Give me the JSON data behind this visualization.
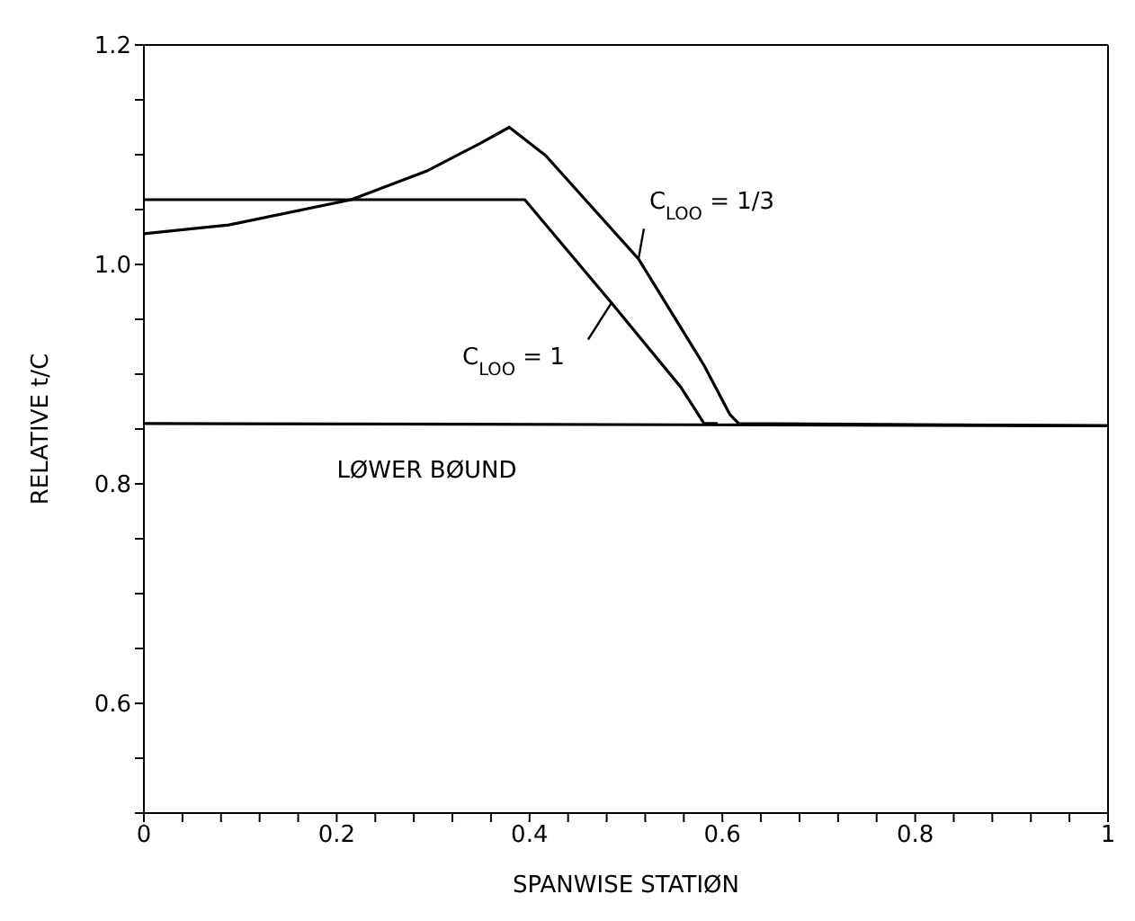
{
  "chart_data": {
    "type": "line",
    "xlabel": "SPANWISE STATIØN",
    "ylabel": "RELATIVE t/C",
    "xlim": [
      0,
      1
    ],
    "ylim": [
      0.5,
      1.2
    ],
    "xticks": [
      {
        "value": 0,
        "label": "0"
      },
      {
        "value": 0.04,
        "label": null
      },
      {
        "value": 0.08,
        "label": null
      },
      {
        "value": 0.12,
        "label": null
      },
      {
        "value": 0.16,
        "label": null
      },
      0.2,
      {
        "value": 0.24,
        "label": null
      },
      {
        "value": 0.28,
        "label": null
      },
      {
        "value": 0.32,
        "label": null
      },
      {
        "value": 0.36,
        "label": null
      },
      0.4,
      {
        "value": 0.44,
        "label": null
      },
      {
        "value": 0.48,
        "label": null
      },
      {
        "value": 0.52,
        "label": null
      },
      {
        "value": 0.56,
        "label": null
      },
      0.6,
      {
        "value": 0.64,
        "label": null
      },
      {
        "value": 0.68,
        "label": null
      },
      {
        "value": 0.72,
        "label": null
      },
      {
        "value": 0.76,
        "label": null
      },
      0.8,
      {
        "value": 0.84,
        "label": null
      },
      {
        "value": 0.88,
        "label": null
      },
      {
        "value": 0.92,
        "label": null
      },
      {
        "value": 0.96,
        "label": null
      },
      1
    ],
    "yticks": [
      {
        "value": 0.5,
        "label": null
      },
      {
        "value": 0.55,
        "label": null
      },
      0.6,
      {
        "value": 0.65,
        "label": null
      },
      {
        "value": 0.7,
        "label": null
      },
      {
        "value": 0.75,
        "label": null
      },
      0.8,
      {
        "value": 0.85,
        "label": null
      },
      {
        "value": 0.9,
        "label": null
      },
      {
        "value": 0.95,
        "label": null
      },
      {
        "value": 1.0,
        "label": "1.0"
      },
      {
        "value": 1.05,
        "label": null
      },
      {
        "value": 1.1,
        "label": null
      },
      {
        "value": 1.15,
        "label": null
      },
      1.2
    ],
    "marker": "none",
    "line_style": "solid",
    "series": [
      {
        "color": "#000000",
        "x": [
          0,
          0.088,
          0.215,
          0.293,
          0.348,
          0.379,
          0.417,
          0.513,
          0.581,
          0.608,
          0.617,
          1
        ],
        "values": [
          1.028,
          1.036,
          1.059,
          1.085,
          1.11,
          1.125,
          1.099,
          1.005,
          0.908,
          0.863,
          0.855,
          0.853
        ]
      },
      {
        "color": "#000000",
        "x": [
          0,
          0.395,
          0.485,
          0.557,
          0.581,
          0.595
        ],
        "values": [
          1.059,
          1.059,
          0.965,
          0.888,
          0.855,
          0.855
        ]
      },
      {
        "color": "#000000",
        "x": [
          0,
          1
        ],
        "values": [
          0.855,
          0.853
        ]
      }
    ],
    "annotations": [
      {
        "text": "C$_{LOO}$ = 1/3",
        "x": 0.513,
        "y": 1.005
      },
      {
        "text": "C$_{LOO}$ = 1",
        "x": 0.485,
        "y": 0.965
      },
      {
        "text": "LØWER BØUND",
        "x": 0.2,
        "y": 0.855
      }
    ]
  }
}
